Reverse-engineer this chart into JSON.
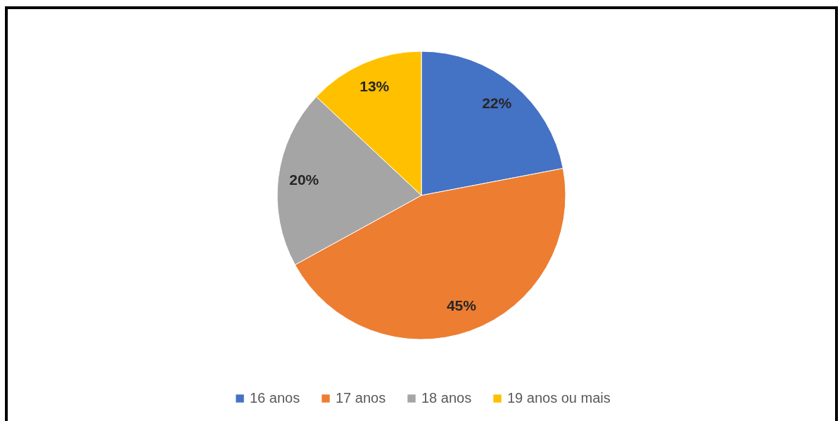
{
  "chart_data": {
    "type": "pie",
    "categories": [
      "16 anos",
      "17 anos",
      "18 anos",
      "19 anos ou mais"
    ],
    "values": [
      22,
      45,
      20,
      13
    ],
    "colors": [
      "#4472c4",
      "#ed7d31",
      "#a5a5a5",
      "#ffc000"
    ],
    "value_labels": [
      "22%",
      "45%",
      "20%",
      "13%"
    ],
    "legend": "bottom"
  }
}
